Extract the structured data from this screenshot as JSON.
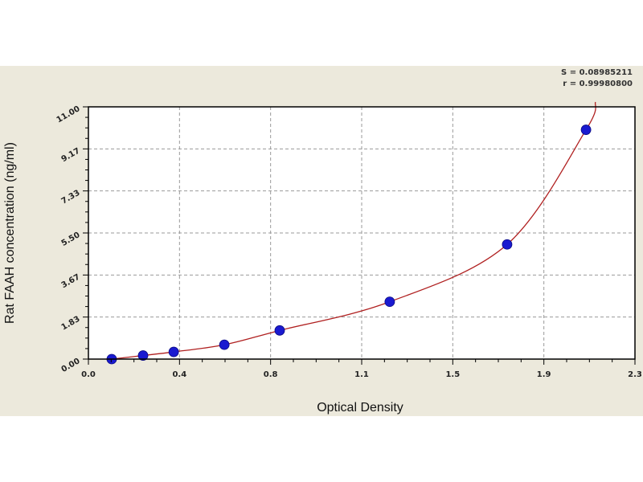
{
  "chart_data": {
    "type": "scatter",
    "title": "",
    "xlabel": "Optical Density",
    "ylabel": "Rat FAAH concentration (ng/ml)",
    "xlim": [
      0,
      2.3
    ],
    "ylim": [
      0,
      11
    ],
    "x_ticks": [
      "0.0",
      "0.4",
      "0.8",
      "1.1",
      "1.5",
      "1.9",
      "2.3"
    ],
    "y_ticks": [
      "0.00",
      "1.83",
      "3.67",
      "5.50",
      "7.33",
      "9.17",
      "11.00"
    ],
    "grid": true,
    "fit_curve": true,
    "stats": [
      "S = 0.08985211",
      "r = 0.99980800"
    ],
    "points": [
      {
        "x": 0.098,
        "y": 0
      },
      {
        "x": 0.23,
        "y": 0.156
      },
      {
        "x": 0.359,
        "y": 0.313
      },
      {
        "x": 0.572,
        "y": 0.625
      },
      {
        "x": 0.805,
        "y": 1.25
      },
      {
        "x": 1.268,
        "y": 2.5
      },
      {
        "x": 1.762,
        "y": 5
      },
      {
        "x": 2.094,
        "y": 10
      }
    ],
    "colors": {
      "points": "#1a1ad0",
      "curve": "#b02020",
      "grid": "#999999",
      "background": "#ece9dc",
      "plot": "#ffffff"
    }
  }
}
